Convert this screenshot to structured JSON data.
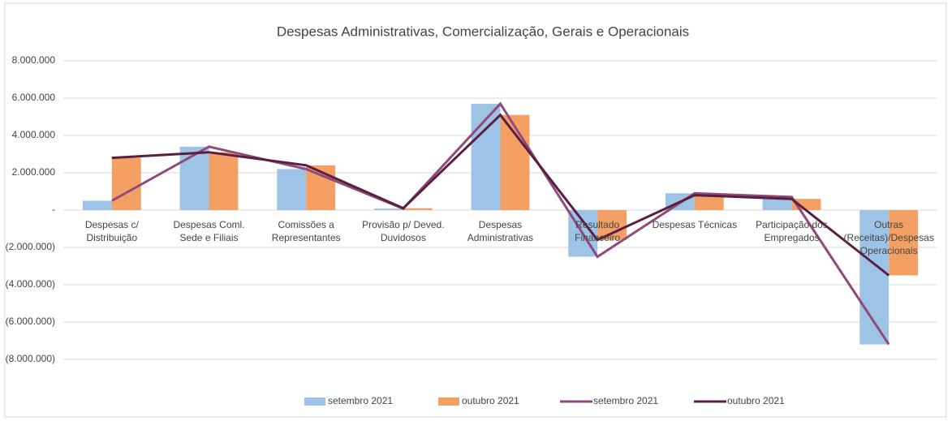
{
  "chart_data": {
    "type": "bar",
    "title": "Despesas Administrativas, Comercialização, Gerais e Operacionais",
    "categories": [
      "Despesas c/ Distribuição",
      "Despesas Coml. Sede e Filiais",
      "Comissões a Representantes",
      "Provisão p/ Deved. Duvidosos",
      "Despesas Administrativas",
      "Resultado Financeiro",
      "Despesas  Técnicas",
      "Participação dos Empregados",
      "Outras (Receitas)/Despesas Operacionais"
    ],
    "series": [
      {
        "name": "setembro 2021",
        "type": "bar",
        "color": "#9dc3e6",
        "values": [
          500000,
          3400000,
          2200000,
          80000,
          5700000,
          -2500000,
          900000,
          700000,
          -7200000
        ]
      },
      {
        "name": "outubro 2021",
        "type": "bar",
        "color": "#f4a064",
        "values": [
          2800000,
          3100000,
          2400000,
          100000,
          5100000,
          -1600000,
          800000,
          600000,
          -3500000
        ]
      },
      {
        "name": "setembro 2021",
        "type": "line",
        "color": "#8e4a7a",
        "values": [
          500000,
          3400000,
          2200000,
          80000,
          5700000,
          -2500000,
          900000,
          700000,
          -7200000
        ]
      },
      {
        "name": "outubro 2021",
        "type": "line",
        "color": "#5a1f40",
        "values": [
          2800000,
          3100000,
          2400000,
          100000,
          5100000,
          -1600000,
          800000,
          600000,
          -3500000
        ]
      }
    ],
    "ylim": [
      -8000000,
      8000000
    ],
    "yticks": [
      {
        "value": 8000000,
        "label": "8.000.000"
      },
      {
        "value": 6000000,
        "label": "6.000.000"
      },
      {
        "value": 4000000,
        "label": "4.000.000"
      },
      {
        "value": 2000000,
        "label": "2.000.000"
      },
      {
        "value": 0,
        "label": "-"
      },
      {
        "value": -2000000,
        "label": "(2.000.000)"
      },
      {
        "value": -4000000,
        "label": "(4.000.000)"
      },
      {
        "value": -6000000,
        "label": "(6.000.000)"
      },
      {
        "value": -8000000,
        "label": "(8.000.000)"
      }
    ],
    "grid": true,
    "legend": "bottom"
  }
}
